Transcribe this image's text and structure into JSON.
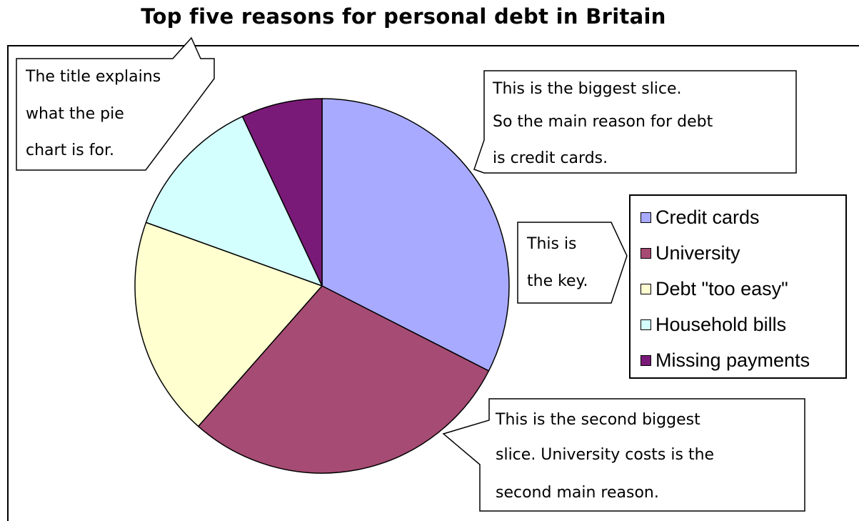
{
  "chart_data": {
    "type": "pie",
    "title": "Top five reasons for personal debt in Britain",
    "slices": [
      {
        "label": "Credit cards",
        "value": 32.5,
        "color": "#a8aaff"
      },
      {
        "label": "University",
        "value": 29.0,
        "color": "#a64b73"
      },
      {
        "label": "Debt \"too easy\"",
        "value": 19.0,
        "color": "#ffffd0"
      },
      {
        "label": "Household bills",
        "value": 12.5,
        "color": "#d4ffff"
      },
      {
        "label": "Missing payments",
        "value": 7.0,
        "color": "#7a1a78"
      }
    ],
    "legend_position": "right",
    "annotations": [
      {
        "lines": [
          "The title explains",
          "what the pie",
          "chart is for."
        ]
      },
      {
        "lines": [
          "This is the biggest slice.",
          "So the main reason for debt",
          "is credit cards."
        ]
      },
      {
        "lines": [
          "This is",
          "the key."
        ]
      },
      {
        "lines": [
          "This is the second biggest",
          "slice.  University costs is the",
          "second main reason."
        ]
      }
    ]
  }
}
